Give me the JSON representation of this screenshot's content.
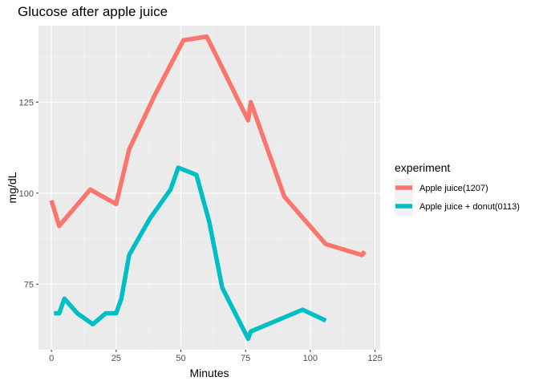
{
  "chart_data": {
    "type": "line",
    "title": "Glucose after apple juice",
    "xlabel": "Minutes",
    "ylabel": "mg/dL",
    "xlim": [
      -5,
      127
    ],
    "ylim": [
      57,
      146
    ],
    "xticks": [
      0,
      25,
      50,
      75,
      100,
      125
    ],
    "yticks": [
      75,
      100,
      125
    ],
    "grid": true,
    "legend": {
      "title": "experiment",
      "position": "right"
    },
    "series": [
      {
        "name": "Apple juice(1207)",
        "color": "#F8766D",
        "points": [
          [
            0,
            98
          ],
          [
            3,
            91
          ],
          [
            15,
            101
          ],
          [
            25,
            97
          ],
          [
            30,
            112
          ],
          [
            40,
            127
          ],
          [
            51,
            142
          ],
          [
            60,
            143
          ],
          [
            76,
            120
          ],
          [
            77,
            125
          ],
          [
            90,
            99
          ],
          [
            106,
            86
          ],
          [
            120,
            83
          ],
          [
            121,
            84
          ]
        ]
      },
      {
        "name": "Apple juice + donut(0113)",
        "color": "#00BFC4",
        "points": [
          [
            1,
            67
          ],
          [
            3,
            67
          ],
          [
            5,
            71
          ],
          [
            10,
            67
          ],
          [
            16,
            64
          ],
          [
            21,
            67
          ],
          [
            25,
            67
          ],
          [
            27,
            71
          ],
          [
            30,
            83
          ],
          [
            38,
            93
          ],
          [
            46,
            101
          ],
          [
            49,
            107
          ],
          [
            56,
            105
          ],
          [
            61,
            92
          ],
          [
            66,
            74
          ],
          [
            76,
            60
          ],
          [
            77,
            62
          ],
          [
            97,
            68
          ],
          [
            106,
            65
          ]
        ]
      }
    ]
  }
}
